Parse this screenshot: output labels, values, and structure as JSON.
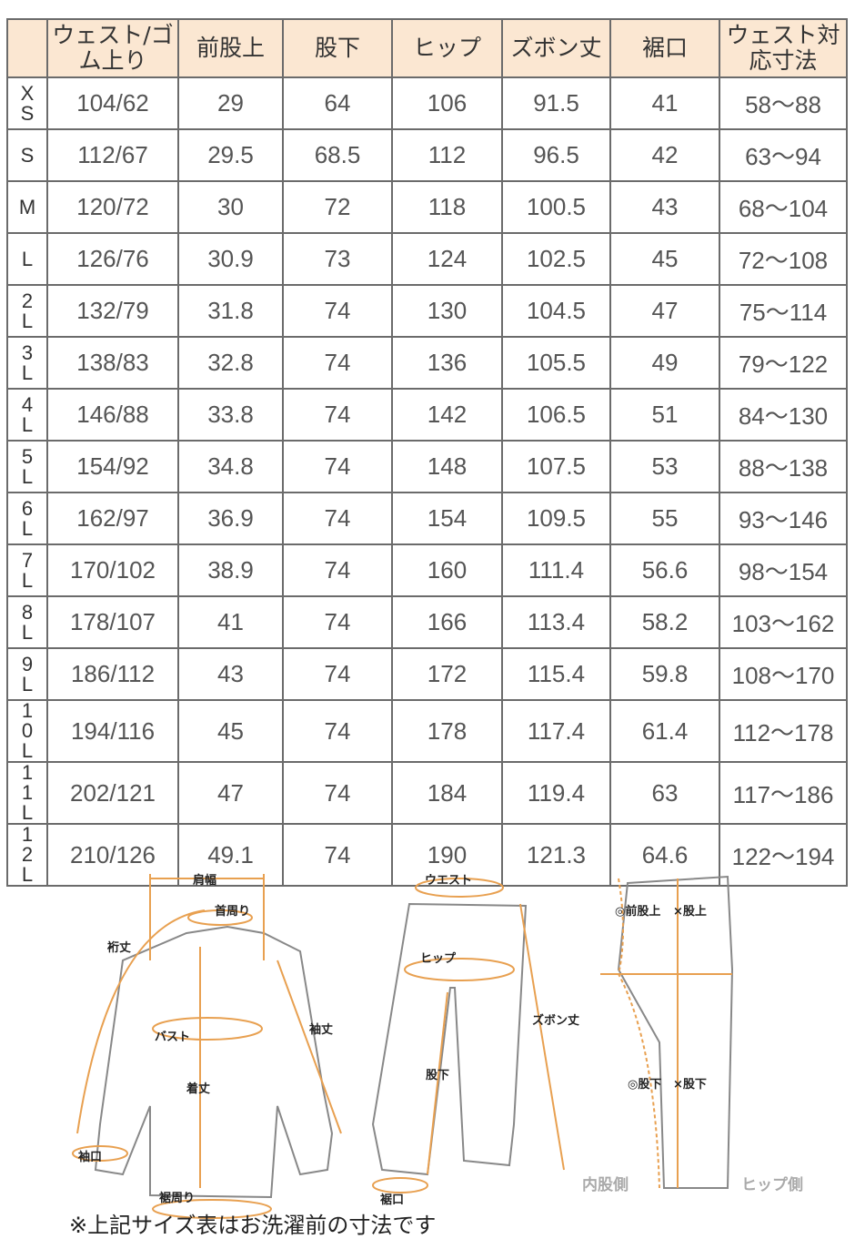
{
  "table": {
    "headers": [
      "",
      "ウェスト/ゴム上り",
      "前股上",
      "股下",
      "ヒップ",
      "ズボン丈",
      "裾口",
      "ウェスト対応寸法"
    ],
    "rows": [
      [
        "XS",
        "104/62",
        "29",
        "64",
        "106",
        "91.5",
        "41",
        "58～88"
      ],
      [
        "S",
        "112/67",
        "29.5",
        "68.5",
        "112",
        "96.5",
        "42",
        "63～94"
      ],
      [
        "M",
        "120/72",
        "30",
        "72",
        "118",
        "100.5",
        "43",
        "68～104"
      ],
      [
        "L",
        "126/76",
        "30.9",
        "73",
        "124",
        "102.5",
        "45",
        "72～108"
      ],
      [
        "2L",
        "132/79",
        "31.8",
        "74",
        "130",
        "104.5",
        "47",
        "75～114"
      ],
      [
        "3L",
        "138/83",
        "32.8",
        "74",
        "136",
        "105.5",
        "49",
        "79～122"
      ],
      [
        "4L",
        "146/88",
        "33.8",
        "74",
        "142",
        "106.5",
        "51",
        "84～130"
      ],
      [
        "5L",
        "154/92",
        "34.8",
        "74",
        "148",
        "107.5",
        "53",
        "88～138"
      ],
      [
        "6L",
        "162/97",
        "36.9",
        "74",
        "154",
        "109.5",
        "55",
        "93～146"
      ],
      [
        "7L",
        "170/102",
        "38.9",
        "74",
        "160",
        "111.4",
        "56.6",
        "98～154"
      ],
      [
        "8L",
        "178/107",
        "41",
        "74",
        "166",
        "113.4",
        "58.2",
        "103～162"
      ],
      [
        "9L",
        "186/112",
        "43",
        "74",
        "172",
        "115.4",
        "59.8",
        "108～170"
      ],
      [
        "10L",
        "194/116",
        "45",
        "74",
        "178",
        "117.4",
        "61.4",
        "112～178"
      ],
      [
        "11L",
        "202/121",
        "47",
        "74",
        "184",
        "119.4",
        "63",
        "117～186"
      ],
      [
        "12L",
        "210/126",
        "49.1",
        "74",
        "190",
        "121.3",
        "64.6",
        "122～194"
      ]
    ]
  },
  "diagram": {
    "shirt": {
      "shoulder": "肩幅",
      "neck": "首周り",
      "yuki": "裄丈",
      "bust": "バスト",
      "sleeve": "袖丈",
      "length": "着丈",
      "cuff": "袖口",
      "hem": "裾周り"
    },
    "pants": {
      "waist": "ウエスト",
      "hip": "ヒップ",
      "inseam": "股下",
      "length": "ズボン丈",
      "hem": "裾口"
    },
    "side": {
      "front_rise": "◎前股上",
      "rise": "×股上",
      "inseam_o": "◎股下",
      "inseam_x": "×股下",
      "inner": "内股側",
      "hip_side": "ヒップ側"
    },
    "accent": "#e8a050"
  },
  "note": "※上記サイズ表はお洗濯前の寸法です"
}
